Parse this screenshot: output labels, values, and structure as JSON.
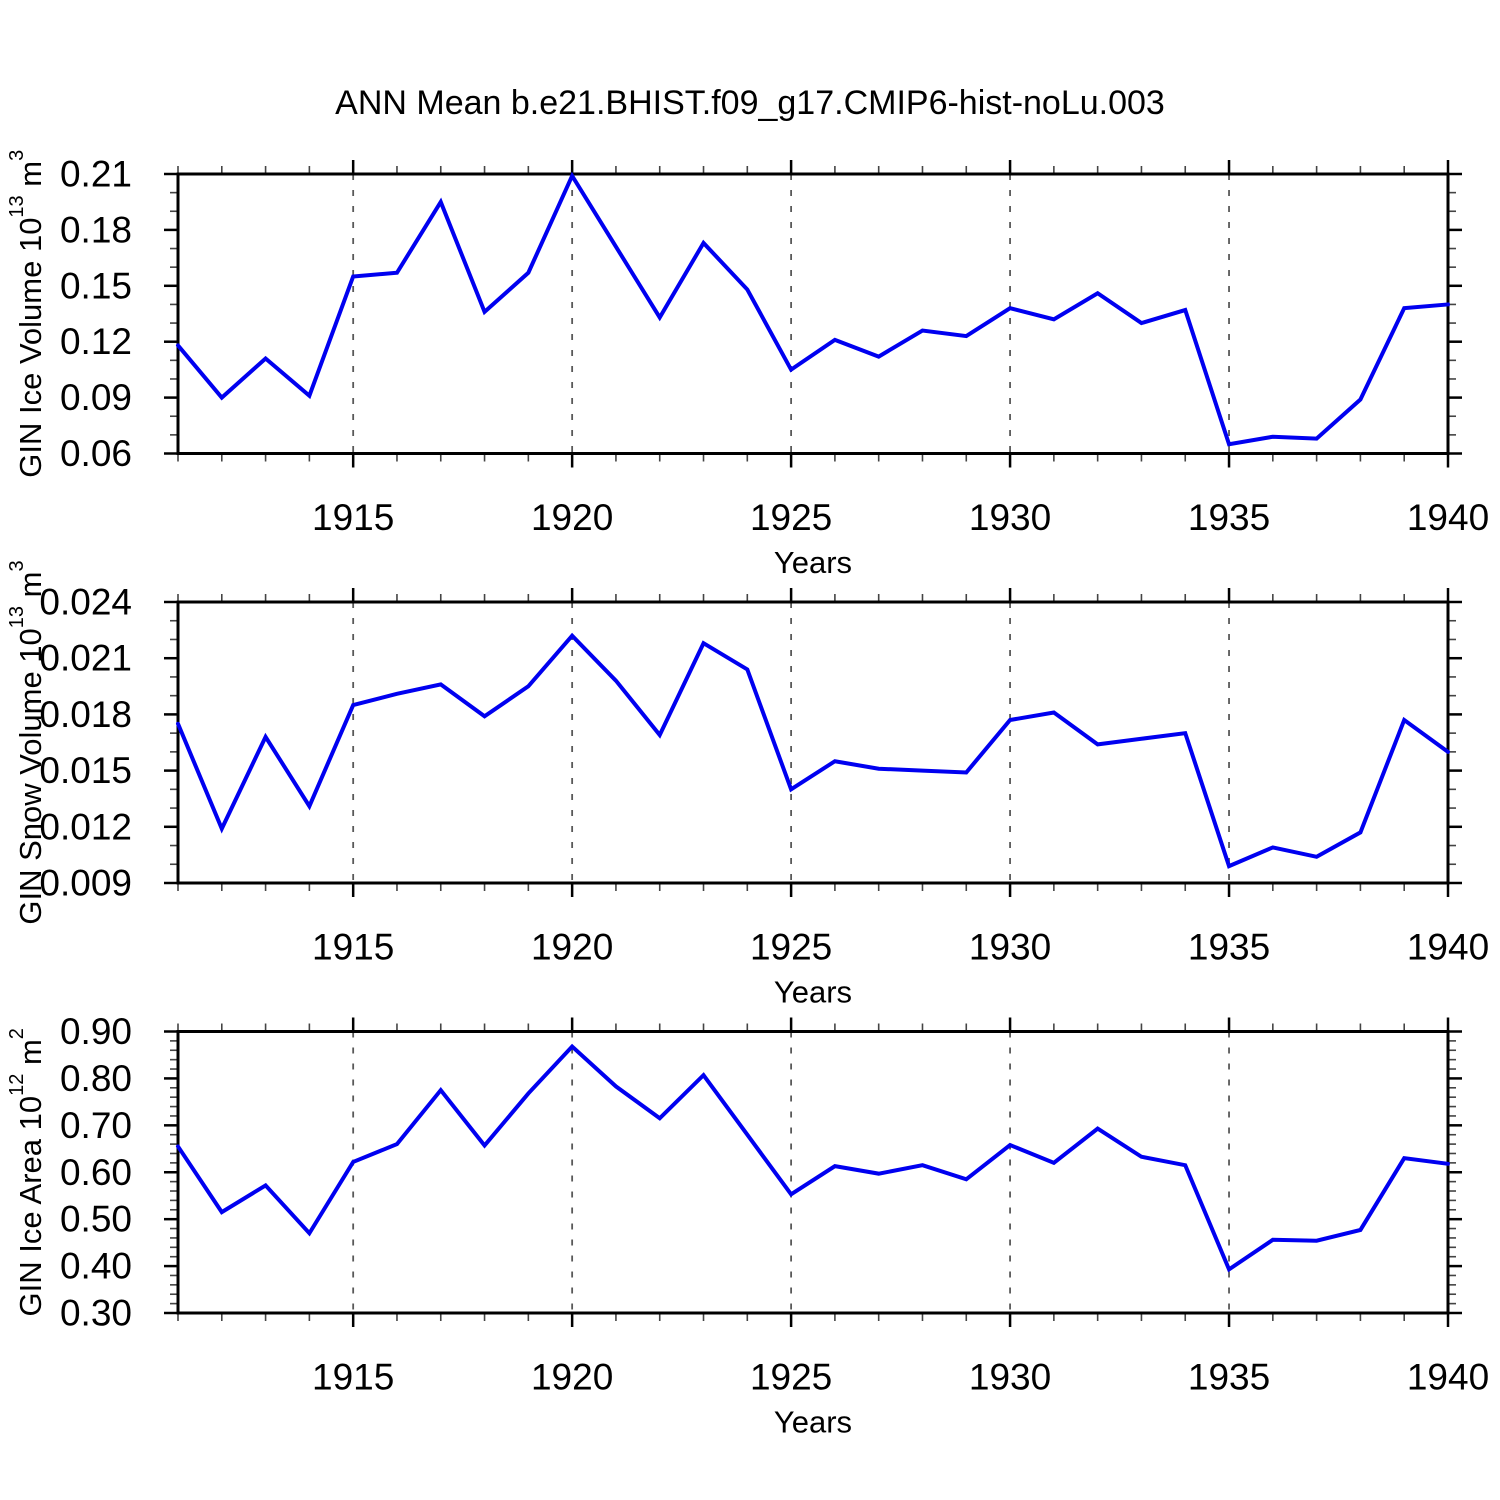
{
  "title": "ANN Mean b.e21.BHIST.f09_g17.CMIP6-hist-noLu.003",
  "colors": {
    "line": "#0000F0",
    "axis": "#000000",
    "minor_tick": "#444444",
    "grid": "#595959",
    "background": "#FFFFFF"
  },
  "chart_data": [
    {
      "id": "ice-volume",
      "type": "line",
      "xlabel": "Years",
      "ylabel_text": "GIN Ice Volume 10^13 m^3",
      "ylabel_parts": [
        {
          "t": "GIN Ice Volume 10"
        },
        {
          "t": "13",
          "sup": true
        },
        {
          "t": " m"
        },
        {
          "t": "3",
          "sup": true
        }
      ],
      "xlim": [
        1911,
        1940
      ],
      "ylim": [
        0.06,
        0.21
      ],
      "ytick_values": [
        0.21,
        0.18,
        0.15,
        0.12,
        0.09,
        0.06
      ],
      "ytick_labels": [
        "0.21",
        "0.18",
        "0.15",
        "0.12",
        "0.09",
        "0.06"
      ],
      "y_minor_step": 0.01,
      "xtick_values": [
        1915,
        1920,
        1925,
        1930,
        1935,
        1940
      ],
      "xtick_labels": [
        "1915",
        "1920",
        "1925",
        "1930",
        "1935",
        "1940"
      ],
      "grid_x": [
        1915,
        1920,
        1925,
        1930,
        1935
      ],
      "years": [
        1911,
        1912,
        1913,
        1914,
        1915,
        1916,
        1917,
        1918,
        1919,
        1920,
        1921,
        1922,
        1923,
        1924,
        1925,
        1926,
        1927,
        1928,
        1929,
        1930,
        1931,
        1932,
        1933,
        1934,
        1935,
        1936,
        1937,
        1938,
        1939,
        1940
      ],
      "values": [
        0.118,
        0.09,
        0.111,
        0.091,
        0.155,
        0.157,
        0.195,
        0.136,
        0.157,
        0.209,
        0.171,
        0.133,
        0.173,
        0.148,
        0.105,
        0.121,
        0.112,
        0.126,
        0.123,
        0.138,
        0.132,
        0.146,
        0.13,
        0.137,
        0.065,
        0.069,
        0.068,
        0.089,
        0.138,
        0.14
      ]
    },
    {
      "id": "snow-volume",
      "type": "line",
      "xlabel": "Years",
      "ylabel_text": "GIN Snow Volume 10^13 m^3",
      "ylabel_parts": [
        {
          "t": "GIN Snow Volume 10"
        },
        {
          "t": "13",
          "sup": true
        },
        {
          "t": " m"
        },
        {
          "t": "3",
          "sup": true
        }
      ],
      "xlim": [
        1911,
        1940
      ],
      "ylim": [
        0.009,
        0.024
      ],
      "ytick_values": [
        0.024,
        0.021,
        0.018,
        0.015,
        0.012,
        0.009
      ],
      "ytick_labels": [
        "0.024",
        "0.021",
        "0.018",
        "0.015",
        "0.012",
        "0.009"
      ],
      "y_minor_step": 0.001,
      "xtick_values": [
        1915,
        1920,
        1925,
        1930,
        1935,
        1940
      ],
      "xtick_labels": [
        "1915",
        "1920",
        "1925",
        "1930",
        "1935",
        "1940"
      ],
      "grid_x": [
        1915,
        1920,
        1925,
        1930,
        1935
      ],
      "years": [
        1911,
        1912,
        1913,
        1914,
        1915,
        1916,
        1917,
        1918,
        1919,
        1920,
        1921,
        1922,
        1923,
        1924,
        1925,
        1926,
        1927,
        1928,
        1929,
        1930,
        1931,
        1932,
        1933,
        1934,
        1935,
        1936,
        1937,
        1938,
        1939,
        1940
      ],
      "values": [
        0.0175,
        0.0119,
        0.0168,
        0.0131,
        0.0185,
        0.0191,
        0.0196,
        0.0179,
        0.0195,
        0.0222,
        0.0198,
        0.0169,
        0.0218,
        0.0204,
        0.014,
        0.0155,
        0.0151,
        0.015,
        0.0149,
        0.0177,
        0.0181,
        0.0164,
        0.0167,
        0.017,
        0.0099,
        0.0109,
        0.0104,
        0.0117,
        0.0177,
        0.016
      ]
    },
    {
      "id": "ice-area",
      "type": "line",
      "xlabel": "Years",
      "ylabel_text": "GIN Ice Area 10^12 m^2",
      "ylabel_parts": [
        {
          "t": "GIN Ice Area 10"
        },
        {
          "t": "12",
          "sup": true
        },
        {
          "t": " m"
        },
        {
          "t": "2",
          "sup": true
        }
      ],
      "xlim": [
        1911,
        1940
      ],
      "ylim": [
        0.3,
        0.9
      ],
      "ytick_values": [
        0.9,
        0.8,
        0.7,
        0.6,
        0.5,
        0.4,
        0.3
      ],
      "ytick_labels": [
        "0.90",
        "0.80",
        "0.70",
        "0.60",
        "0.50",
        "0.40",
        "0.30"
      ],
      "y_minor_step": 0.02,
      "xtick_values": [
        1915,
        1920,
        1925,
        1930,
        1935,
        1940
      ],
      "xtick_labels": [
        "1915",
        "1920",
        "1925",
        "1930",
        "1935",
        "1940"
      ],
      "grid_x": [
        1915,
        1920,
        1925,
        1930,
        1935
      ],
      "years": [
        1911,
        1912,
        1913,
        1914,
        1915,
        1916,
        1917,
        1918,
        1919,
        1920,
        1921,
        1922,
        1923,
        1924,
        1925,
        1926,
        1927,
        1928,
        1929,
        1930,
        1931,
        1932,
        1933,
        1934,
        1935,
        1936,
        1937,
        1938,
        1939,
        1940
      ],
      "values": [
        0.655,
        0.515,
        0.572,
        0.47,
        0.622,
        0.66,
        0.775,
        0.657,
        0.768,
        0.868,
        0.783,
        0.715,
        0.807,
        0.68,
        0.553,
        0.613,
        0.597,
        0.615,
        0.585,
        0.658,
        0.62,
        0.693,
        0.633,
        0.615,
        0.393,
        0.456,
        0.454,
        0.477,
        0.63,
        0.618
      ]
    }
  ]
}
